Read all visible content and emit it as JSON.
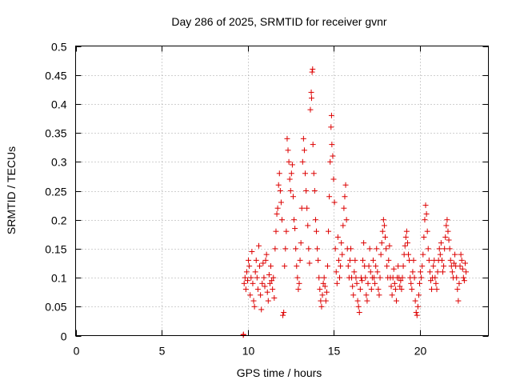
{
  "chart_data": {
    "type": "scatter",
    "title": "Day 286 of 2025, SRMTID for receiver gvnr",
    "xlabel": "GPS time / hours",
    "ylabel": "SRMTID / TECUs",
    "xlim": [
      0,
      24
    ],
    "ylim": [
      0,
      0.5
    ],
    "xticks": [
      0,
      5,
      10,
      15,
      20
    ],
    "xtick_labels": [
      "0",
      "5",
      "10",
      "15",
      "20"
    ],
    "yticks": [
      0,
      0.05,
      0.1,
      0.15,
      0.2,
      0.25,
      0.3,
      0.35,
      0.4,
      0.45,
      0.5
    ],
    "ytick_labels": [
      "0",
      "0.05",
      "0.1",
      "0.15",
      "0.2",
      "0.25",
      "0.3",
      "0.35",
      "0.4",
      "0.45",
      "0.5"
    ],
    "grid": true,
    "marker": "+",
    "series": [
      {
        "name": "SRMTID",
        "color": "#dd0000",
        "points": [
          [
            9.75,
            0.001
          ],
          [
            9.76,
            0.002
          ],
          [
            9.8,
            0.09
          ],
          [
            9.85,
            0.1
          ],
          [
            9.9,
            0.08
          ],
          [
            9.95,
            0.11
          ],
          [
            10.0,
            0.095
          ],
          [
            10.05,
            0.13
          ],
          [
            10.1,
            0.12
          ],
          [
            10.15,
            0.07
          ],
          [
            10.2,
            0.1
          ],
          [
            10.25,
            0.145
          ],
          [
            10.3,
            0.09
          ],
          [
            10.35,
            0.06
          ],
          [
            10.4,
            0.05
          ],
          [
            10.45,
            0.11
          ],
          [
            10.5,
            0.13
          ],
          [
            10.55,
            0.1
          ],
          [
            10.6,
            0.08
          ],
          [
            10.65,
            0.155
          ],
          [
            10.7,
            0.12
          ],
          [
            10.75,
            0.07
          ],
          [
            10.8,
            0.045
          ],
          [
            10.85,
            0.09
          ],
          [
            10.9,
            0.125
          ],
          [
            10.95,
            0.1
          ],
          [
            11.0,
            0.085
          ],
          [
            11.05,
            0.13
          ],
          [
            11.1,
            0.14
          ],
          [
            11.15,
            0.075
          ],
          [
            11.2,
            0.06
          ],
          [
            11.25,
            0.105
          ],
          [
            11.3,
            0.09
          ],
          [
            11.35,
            0.12
          ],
          [
            11.4,
            0.095
          ],
          [
            11.45,
            0.08
          ],
          [
            11.5,
            0.1
          ],
          [
            11.55,
            0.065
          ],
          [
            11.6,
            0.15
          ],
          [
            11.65,
            0.18
          ],
          [
            11.7,
            0.21
          ],
          [
            11.75,
            0.22
          ],
          [
            11.8,
            0.26
          ],
          [
            11.85,
            0.28
          ],
          [
            11.9,
            0.25
          ],
          [
            11.95,
            0.23
          ],
          [
            12.0,
            0.2
          ],
          [
            12.05,
            0.035
          ],
          [
            12.1,
            0.04
          ],
          [
            12.15,
            0.12
          ],
          [
            12.2,
            0.15
          ],
          [
            12.25,
            0.18
          ],
          [
            12.3,
            0.34
          ],
          [
            12.35,
            0.32
          ],
          [
            12.4,
            0.3
          ],
          [
            12.45,
            0.27
          ],
          [
            12.5,
            0.25
          ],
          [
            12.55,
            0.28
          ],
          [
            12.6,
            0.295
          ],
          [
            12.65,
            0.24
          ],
          [
            12.7,
            0.2
          ],
          [
            12.75,
            0.185
          ],
          [
            12.8,
            0.15
          ],
          [
            12.85,
            0.12
          ],
          [
            12.9,
            0.1
          ],
          [
            12.95,
            0.08
          ],
          [
            13.0,
            0.09
          ],
          [
            13.05,
            0.13
          ],
          [
            13.1,
            0.16
          ],
          [
            13.15,
            0.22
          ],
          [
            13.2,
            0.3
          ],
          [
            13.25,
            0.34
          ],
          [
            13.3,
            0.32
          ],
          [
            13.35,
            0.28
          ],
          [
            13.4,
            0.25
          ],
          [
            13.45,
            0.22
          ],
          [
            13.5,
            0.19
          ],
          [
            13.55,
            0.15
          ],
          [
            13.6,
            0.125
          ],
          [
            13.65,
            0.39
          ],
          [
            13.7,
            0.42
          ],
          [
            13.72,
            0.41
          ],
          [
            13.75,
            0.455
          ],
          [
            13.78,
            0.46
          ],
          [
            13.8,
            0.33
          ],
          [
            13.85,
            0.28
          ],
          [
            13.9,
            0.25
          ],
          [
            13.95,
            0.2
          ],
          [
            14.0,
            0.18
          ],
          [
            14.05,
            0.15
          ],
          [
            14.1,
            0.13
          ],
          [
            14.15,
            0.1
          ],
          [
            14.2,
            0.08
          ],
          [
            14.25,
            0.06
          ],
          [
            14.3,
            0.05
          ],
          [
            14.35,
            0.07
          ],
          [
            14.4,
            0.09
          ],
          [
            14.45,
            0.1
          ],
          [
            14.5,
            0.085
          ],
          [
            14.55,
            0.06
          ],
          [
            14.6,
            0.075
          ],
          [
            14.65,
            0.12
          ],
          [
            14.7,
            0.18
          ],
          [
            14.75,
            0.24
          ],
          [
            14.8,
            0.3
          ],
          [
            14.85,
            0.36
          ],
          [
            14.88,
            0.38
          ],
          [
            14.9,
            0.33
          ],
          [
            14.95,
            0.31
          ],
          [
            15.0,
            0.27
          ],
          [
            15.05,
            0.23
          ],
          [
            15.1,
            0.15
          ],
          [
            15.15,
            0.11
          ],
          [
            15.2,
            0.09
          ],
          [
            15.25,
            0.17
          ],
          [
            15.3,
            0.13
          ],
          [
            15.35,
            0.1
          ],
          [
            15.4,
            0.12
          ],
          [
            15.45,
            0.16
          ],
          [
            15.5,
            0.14
          ],
          [
            15.55,
            0.19
          ],
          [
            15.6,
            0.22
          ],
          [
            15.65,
            0.24
          ],
          [
            15.7,
            0.26
          ],
          [
            15.75,
            0.2
          ],
          [
            15.8,
            0.15
          ],
          [
            15.85,
            0.12
          ],
          [
            15.9,
            0.1
          ],
          [
            15.95,
            0.13
          ],
          [
            16.0,
            0.15
          ],
          [
            16.05,
            0.1
          ],
          [
            16.1,
            0.085
          ],
          [
            16.15,
            0.07
          ],
          [
            16.2,
            0.11
          ],
          [
            16.25,
            0.13
          ],
          [
            16.3,
            0.1
          ],
          [
            16.35,
            0.09
          ],
          [
            16.4,
            0.06
          ],
          [
            16.45,
            0.05
          ],
          [
            16.5,
            0.04
          ],
          [
            16.55,
            0.08
          ],
          [
            16.6,
            0.1
          ],
          [
            16.65,
            0.095
          ],
          [
            16.7,
            0.13
          ],
          [
            16.75,
            0.16
          ],
          [
            16.8,
            0.12
          ],
          [
            16.85,
            0.1
          ],
          [
            16.9,
            0.07
          ],
          [
            16.95,
            0.06
          ],
          [
            17.0,
            0.09
          ],
          [
            17.05,
            0.12
          ],
          [
            17.1,
            0.15
          ],
          [
            17.15,
            0.11
          ],
          [
            17.2,
            0.08
          ],
          [
            17.25,
            0.1
          ],
          [
            17.3,
            0.13
          ],
          [
            17.35,
            0.1
          ],
          [
            17.4,
            0.09
          ],
          [
            17.45,
            0.12
          ],
          [
            17.5,
            0.15
          ],
          [
            17.55,
            0.11
          ],
          [
            17.6,
            0.08
          ],
          [
            17.65,
            0.07
          ],
          [
            17.7,
            0.1
          ],
          [
            17.75,
            0.14
          ],
          [
            17.8,
            0.16
          ],
          [
            17.85,
            0.18
          ],
          [
            17.9,
            0.2
          ],
          [
            17.95,
            0.19
          ],
          [
            18.0,
            0.17
          ],
          [
            18.05,
            0.15
          ],
          [
            18.1,
            0.12
          ],
          [
            18.15,
            0.1
          ],
          [
            18.2,
            0.13
          ],
          [
            18.25,
            0.155
          ],
          [
            18.3,
            0.1
          ],
          [
            18.35,
            0.085
          ],
          [
            18.4,
            0.07
          ],
          [
            18.45,
            0.1
          ],
          [
            18.5,
            0.115
          ],
          [
            18.55,
            0.09
          ],
          [
            18.6,
            0.08
          ],
          [
            18.65,
            0.06
          ],
          [
            18.7,
            0.1
          ],
          [
            18.75,
            0.12
          ],
          [
            18.8,
            0.1
          ],
          [
            18.85,
            0.085
          ],
          [
            18.9,
            0.095
          ],
          [
            18.95,
            0.08
          ],
          [
            19.0,
            0.1
          ],
          [
            19.05,
            0.12
          ],
          [
            19.1,
            0.14
          ],
          [
            19.15,
            0.155
          ],
          [
            19.2,
            0.17
          ],
          [
            19.25,
            0.18
          ],
          [
            19.3,
            0.16
          ],
          [
            19.35,
            0.14
          ],
          [
            19.4,
            0.13
          ],
          [
            19.45,
            0.1
          ],
          [
            19.5,
            0.09
          ],
          [
            19.55,
            0.08
          ],
          [
            19.6,
            0.11
          ],
          [
            19.65,
            0.13
          ],
          [
            19.7,
            0.1
          ],
          [
            19.75,
            0.06
          ],
          [
            19.8,
            0.04
          ],
          [
            19.85,
            0.035
          ],
          [
            19.9,
            0.05
          ],
          [
            19.95,
            0.07
          ],
          [
            20.0,
            0.09
          ],
          [
            20.05,
            0.11
          ],
          [
            20.1,
            0.1
          ],
          [
            20.15,
            0.12
          ],
          [
            20.2,
            0.14
          ],
          [
            20.25,
            0.17
          ],
          [
            20.3,
            0.2
          ],
          [
            20.35,
            0.225
          ],
          [
            20.4,
            0.21
          ],
          [
            20.45,
            0.18
          ],
          [
            20.5,
            0.15
          ],
          [
            20.55,
            0.13
          ],
          [
            20.6,
            0.11
          ],
          [
            20.65,
            0.095
          ],
          [
            20.7,
            0.08
          ],
          [
            20.75,
            0.1
          ],
          [
            20.8,
            0.12
          ],
          [
            20.85,
            0.13
          ],
          [
            20.9,
            0.1
          ],
          [
            20.95,
            0.09
          ],
          [
            21.0,
            0.08
          ],
          [
            21.05,
            0.11
          ],
          [
            21.1,
            0.13
          ],
          [
            21.15,
            0.15
          ],
          [
            21.2,
            0.14
          ],
          [
            21.25,
            0.16
          ],
          [
            21.3,
            0.13
          ],
          [
            21.35,
            0.11
          ],
          [
            21.4,
            0.12
          ],
          [
            21.45,
            0.15
          ],
          [
            21.5,
            0.17
          ],
          [
            21.55,
            0.19
          ],
          [
            21.6,
            0.2
          ],
          [
            21.65,
            0.18
          ],
          [
            21.7,
            0.165
          ],
          [
            21.75,
            0.15
          ],
          [
            21.8,
            0.13
          ],
          [
            21.85,
            0.12
          ],
          [
            21.9,
            0.11
          ],
          [
            21.95,
            0.1
          ],
          [
            22.0,
            0.125
          ],
          [
            22.05,
            0.14
          ],
          [
            22.1,
            0.12
          ],
          [
            22.15,
            0.1
          ],
          [
            22.2,
            0.08
          ],
          [
            22.25,
            0.06
          ],
          [
            22.3,
            0.09
          ],
          [
            22.35,
            0.12
          ],
          [
            22.4,
            0.14
          ],
          [
            22.45,
            0.13
          ],
          [
            22.5,
            0.115
          ],
          [
            22.55,
            0.1
          ],
          [
            22.6,
            0.095
          ],
          [
            22.65,
            0.125
          ],
          [
            22.7,
            0.11
          ]
        ]
      }
    ]
  }
}
